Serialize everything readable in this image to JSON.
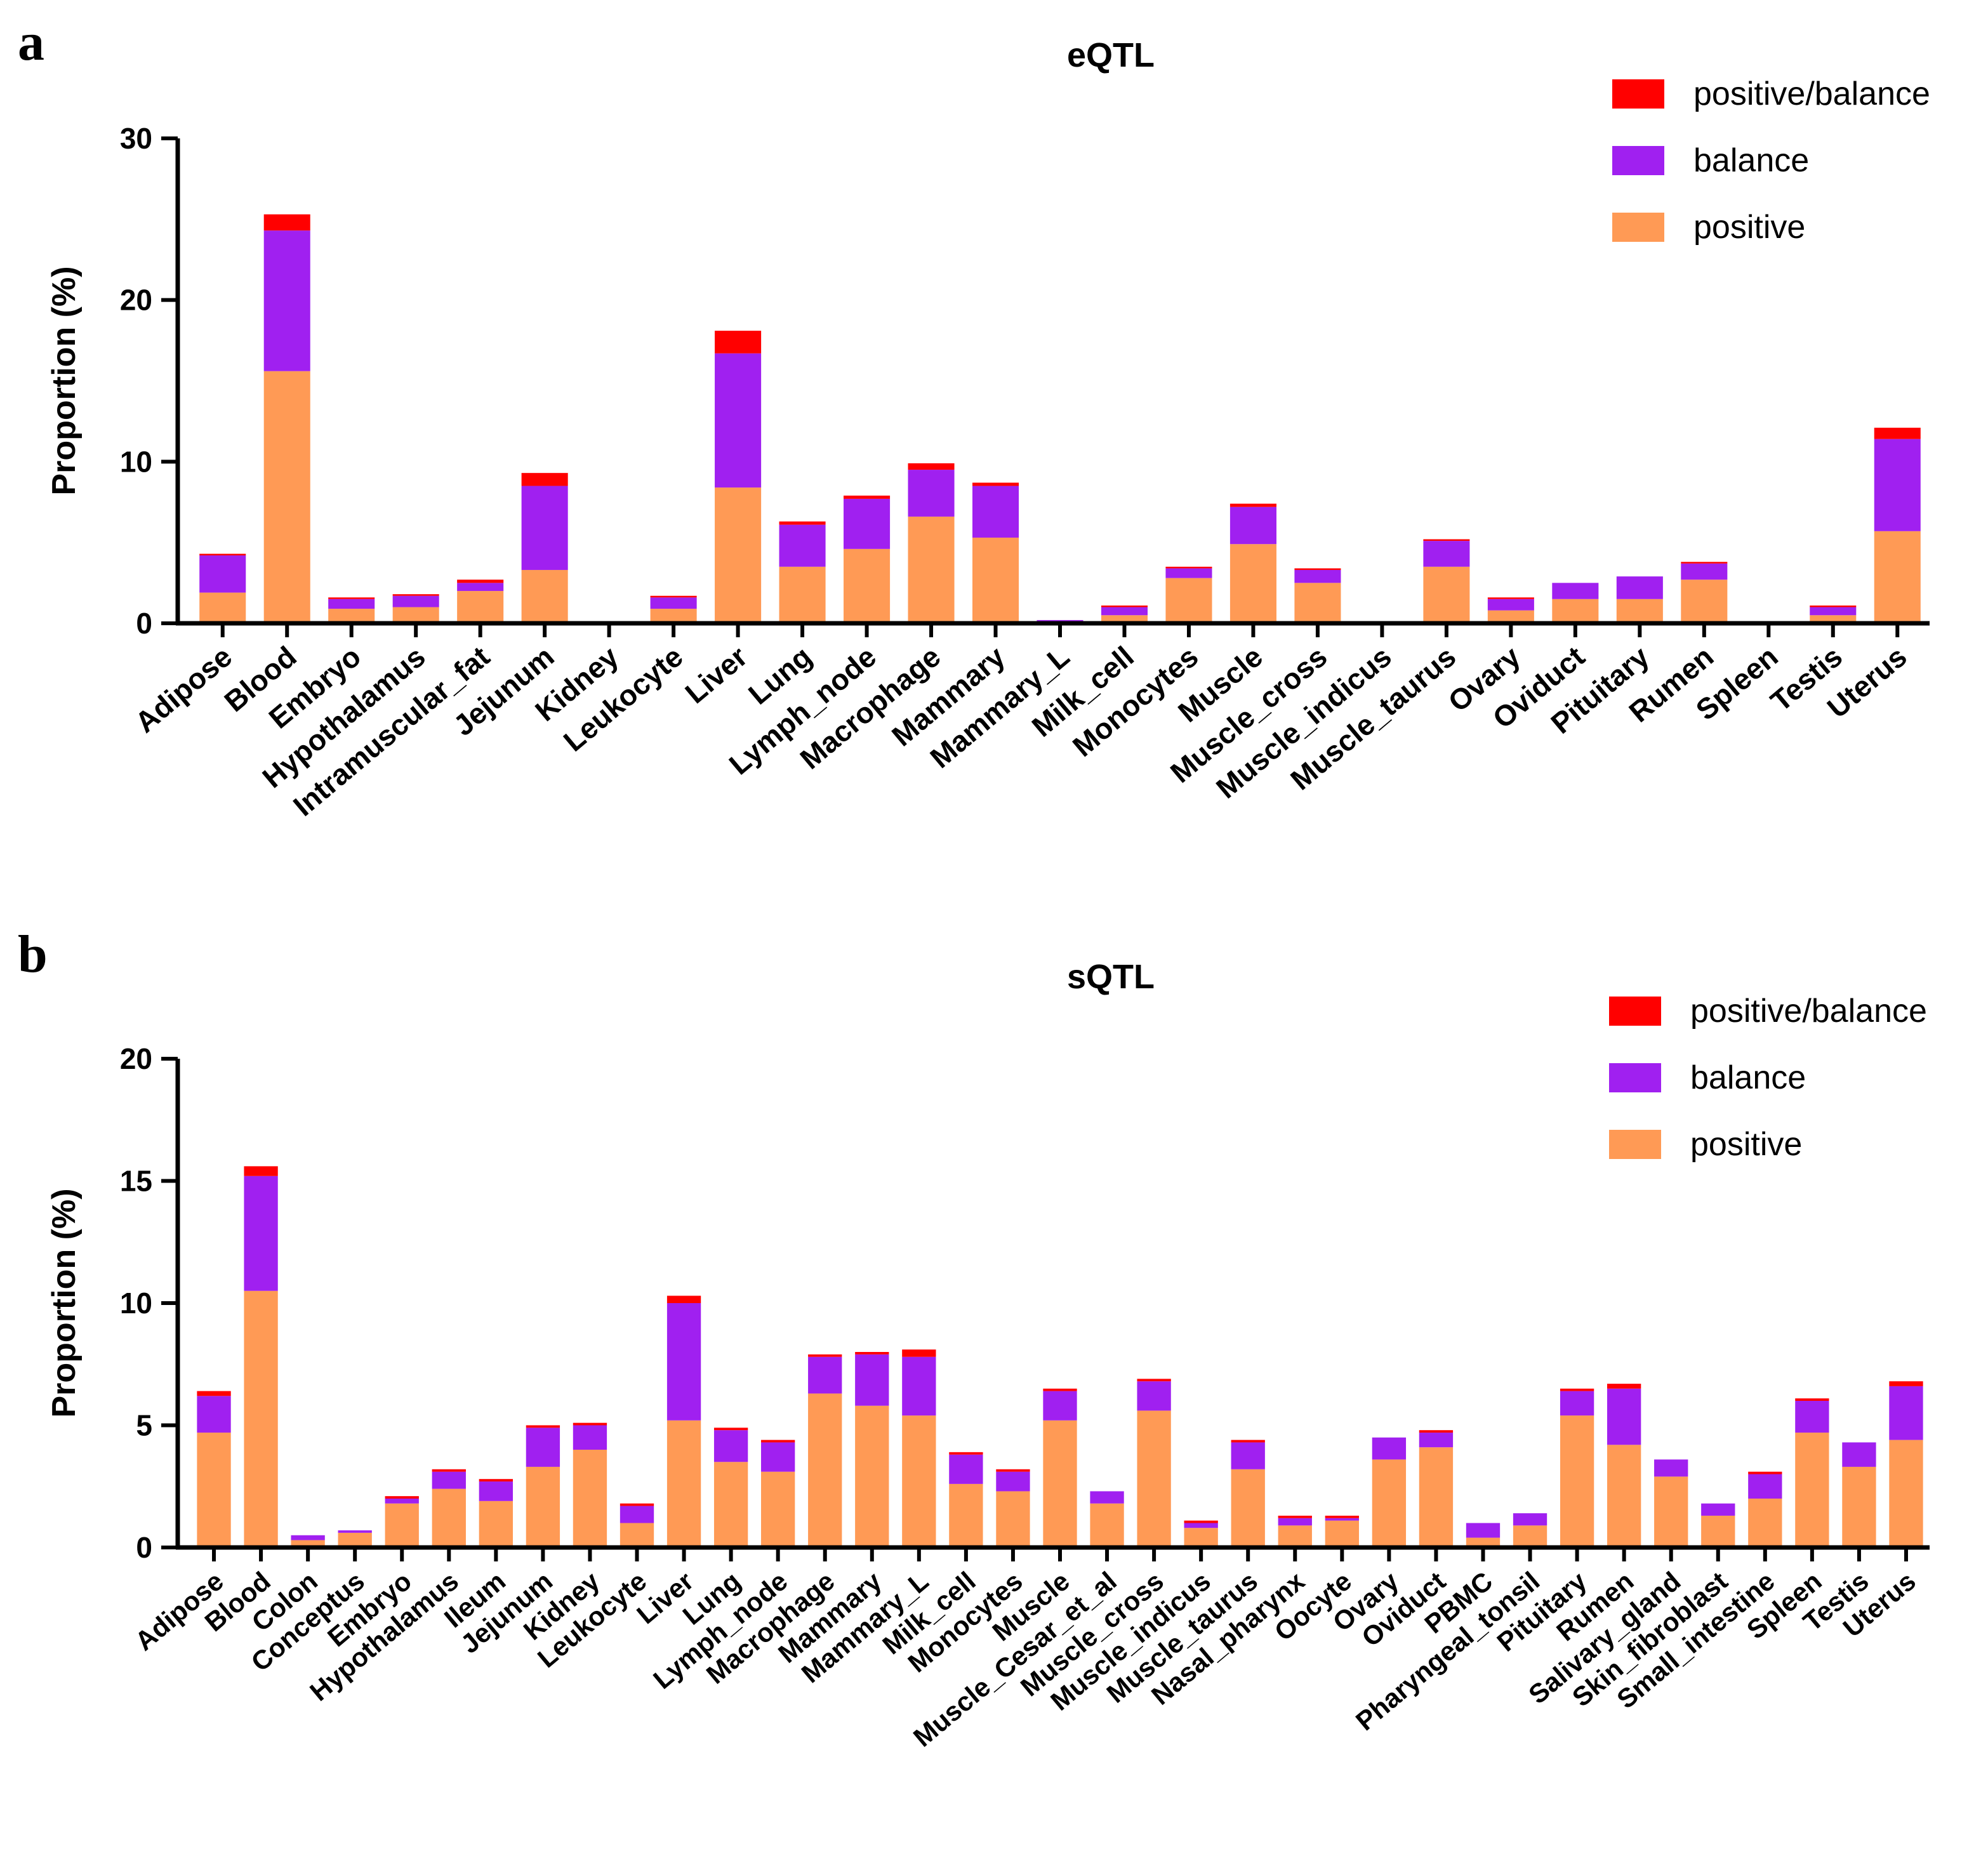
{
  "panels": {
    "a": "a",
    "b": "b"
  },
  "colors": {
    "positive_balance": "#ff0000",
    "balance": "#a020f0",
    "positive": "#ff9a55",
    "axis": "#000000"
  },
  "chart_data": [
    {
      "type": "bar",
      "stacked": true,
      "title": "eQTL",
      "xlabel": "",
      "ylabel": "Proportion (%)",
      "ylim": [
        0,
        30
      ],
      "yticks": [
        0,
        10,
        20,
        30
      ],
      "legend": [
        "positive/balance",
        "balance",
        "positive"
      ],
      "legend_position": "top-right",
      "categories": [
        "Adipose",
        "Blood",
        "Embryo",
        "Hypothalamus",
        "Intramuscular_fat",
        "Jejunum",
        "Kidney",
        "Leukocyte",
        "Liver",
        "Lung",
        "Lymph_node",
        "Macrophage",
        "Mammary",
        "Mammary_L",
        "Milk_cell",
        "Monocytes",
        "Muscle",
        "Muscle_cross",
        "Muscle_indicus",
        "Muscle_taurus",
        "Ovary",
        "Oviduct",
        "Pituitary",
        "Rumen",
        "Spleen",
        "Testis",
        "Uterus"
      ],
      "series": [
        {
          "name": "positive",
          "values": [
            1.9,
            15.6,
            0.9,
            1.0,
            2.0,
            3.3,
            0,
            0.9,
            8.4,
            3.5,
            4.6,
            6.6,
            5.3,
            0.1,
            0.5,
            2.8,
            4.9,
            2.5,
            0,
            3.5,
            0.8,
            1.5,
            1.5,
            2.7,
            0,
            0.5,
            5.7
          ]
        },
        {
          "name": "balance",
          "values": [
            2.3,
            8.7,
            0.6,
            0.7,
            0.5,
            5.2,
            0,
            0.7,
            8.3,
            2.6,
            3.1,
            2.9,
            3.2,
            0.1,
            0.5,
            0.6,
            2.3,
            0.8,
            0,
            1.6,
            0.7,
            1.0,
            1.4,
            1.0,
            0,
            0.5,
            5.7
          ]
        },
        {
          "name": "positive/balance",
          "values": [
            0.1,
            1.0,
            0.1,
            0.1,
            0.2,
            0.8,
            0,
            0.1,
            1.4,
            0.2,
            0.2,
            0.4,
            0.2,
            0,
            0.1,
            0.1,
            0.2,
            0.1,
            0,
            0.1,
            0.1,
            0,
            0,
            0.1,
            0,
            0.1,
            0.7
          ]
        }
      ]
    },
    {
      "type": "bar",
      "stacked": true,
      "title": "sQTL",
      "xlabel": "",
      "ylabel": "Proportion (%)",
      "ylim": [
        0,
        20
      ],
      "yticks": [
        0,
        5,
        10,
        15,
        20
      ],
      "legend": [
        "positive/balance",
        "balance",
        "positive"
      ],
      "legend_position": "top-right",
      "categories": [
        "Adipose",
        "Blood",
        "Colon",
        "Conceptus",
        "Embryo",
        "Hypothalamus",
        "Ileum",
        "Jejunum",
        "Kidney",
        "Leukocyte",
        "Liver",
        "Lung",
        "Lymph_node",
        "Macrophage",
        "Mammary",
        "Mammary_L",
        "Milk_cell",
        "Monocytes",
        "Muscle",
        "Muscle_Cesar_et_al",
        "Muscle_cross",
        "Muscle_indicus",
        "Muscle_taurus",
        "Nasal_pharynx",
        "Oocyte",
        "Ovary",
        "Oviduct",
        "PBMC",
        "Pharyngeal_tonsil",
        "Pituitary",
        "Rumen",
        "Salivary_gland",
        "Skin_fibroblast",
        "Small_intestine",
        "Spleen",
        "Testis",
        "Uterus"
      ],
      "series": [
        {
          "name": "positive",
          "values": [
            4.7,
            10.5,
            0.3,
            0.6,
            1.8,
            2.4,
            1.9,
            3.3,
            4.0,
            1.0,
            5.2,
            3.5,
            3.1,
            6.3,
            5.8,
            5.4,
            2.6,
            2.3,
            5.2,
            1.8,
            5.6,
            0.8,
            3.2,
            0.9,
            1.1,
            3.6,
            4.1,
            0.4,
            0.9,
            5.4,
            4.2,
            2.9,
            1.3,
            2.0,
            4.7,
            3.3,
            4.4
          ]
        },
        {
          "name": "balance",
          "values": [
            1.5,
            4.7,
            0.2,
            0.1,
            0.2,
            0.7,
            0.8,
            1.6,
            1.0,
            0.7,
            4.8,
            1.3,
            1.2,
            1.5,
            2.1,
            2.4,
            1.2,
            0.8,
            1.2,
            0.5,
            1.2,
            0.2,
            1.1,
            0.3,
            0.1,
            0.9,
            0.6,
            0.6,
            0.5,
            1.0,
            2.3,
            0.7,
            0.5,
            1.0,
            1.3,
            1.0,
            2.2
          ]
        },
        {
          "name": "positive/balance",
          "values": [
            0.2,
            0.4,
            0,
            0,
            0.1,
            0.1,
            0.1,
            0.1,
            0.1,
            0.1,
            0.3,
            0.1,
            0.1,
            0.1,
            0.1,
            0.3,
            0.1,
            0.1,
            0.1,
            0,
            0.1,
            0.1,
            0.1,
            0.1,
            0.1,
            0,
            0.1,
            0,
            0,
            0.1,
            0.2,
            0,
            0,
            0.1,
            0.1,
            0,
            0.2
          ]
        }
      ]
    }
  ]
}
